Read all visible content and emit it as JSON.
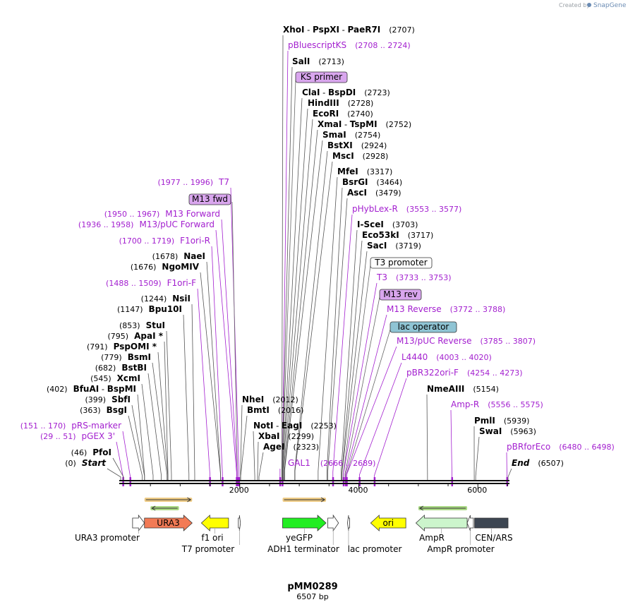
{
  "credit": {
    "prefix": "Created by",
    "brand": "SnapGene"
  },
  "plasmid": {
    "name": "pMM0289",
    "length_label": "6507 bp",
    "length": 6507
  },
  "axis": {
    "ticks": [
      {
        "value": 2000,
        "label": "2000"
      },
      {
        "value": 4000,
        "label": "4000"
      },
      {
        "value": 6000,
        "label": "6000"
      }
    ]
  },
  "sites": [
    {
      "kind": "enzyme",
      "parts": [
        "XhoI",
        "PspXI",
        "PaeR7I"
      ],
      "pos": "(2707)",
      "bp": 2707,
      "color": "#000000"
    },
    {
      "kind": "primer",
      "name": "pBluescriptKS",
      "pos": "(2708 .. 2724)",
      "bp": 2716,
      "color": "#a31fcf"
    },
    {
      "kind": "enzyme",
      "parts": [
        "SalI"
      ],
      "pos": "(2713)",
      "bp": 2713,
      "color": "#000000"
    },
    {
      "kind": "boxed",
      "name": "KS primer",
      "bp": 2716,
      "color": "#d9a6ee"
    },
    {
      "kind": "enzyme",
      "parts": [
        "ClaI",
        "BspDI"
      ],
      "pos": "(2723)",
      "bp": 2723,
      "color": "#000000"
    },
    {
      "kind": "enzyme",
      "parts": [
        "HindIII"
      ],
      "pos": "(2728)",
      "bp": 2728,
      "color": "#000000"
    },
    {
      "kind": "enzyme",
      "parts": [
        "EcoRI"
      ],
      "pos": "(2740)",
      "bp": 2740,
      "color": "#000000"
    },
    {
      "kind": "enzyme",
      "parts": [
        "XmaI",
        "TspMI"
      ],
      "pos": "(2752)",
      "bp": 2752,
      "color": "#000000"
    },
    {
      "kind": "enzyme",
      "parts": [
        "SmaI"
      ],
      "pos": "(2754)",
      "bp": 2754,
      "color": "#000000"
    },
    {
      "kind": "enzyme",
      "parts": [
        "BstXI"
      ],
      "pos": "(2924)",
      "bp": 2924,
      "color": "#000000"
    },
    {
      "kind": "enzyme",
      "parts": [
        "MscI"
      ],
      "pos": "(2928)",
      "bp": 2928,
      "color": "#000000"
    },
    {
      "kind": "enzyme",
      "parts": [
        "MfeI"
      ],
      "pos": "(3317)",
      "bp": 3317,
      "color": "#000000"
    },
    {
      "kind": "enzyme",
      "parts": [
        "BsrGI"
      ],
      "pos": "(3464)",
      "bp": 3464,
      "color": "#000000"
    },
    {
      "kind": "enzyme",
      "parts": [
        "AscI"
      ],
      "pos": "(3479)",
      "bp": 3479,
      "color": "#000000"
    },
    {
      "kind": "primer",
      "name": "pHybLex-R",
      "pos": "(3553 .. 3577)",
      "bp": 3565,
      "color": "#a31fcf"
    },
    {
      "kind": "enzyme",
      "parts": [
        "I-SceI"
      ],
      "pos": "(3703)",
      "bp": 3703,
      "color": "#000000"
    },
    {
      "kind": "enzyme",
      "parts": [
        "Eco53kI"
      ],
      "pos": "(3717)",
      "bp": 3717,
      "color": "#000000"
    },
    {
      "kind": "enzyme",
      "parts": [
        "SacI"
      ],
      "pos": "(3719)",
      "bp": 3719,
      "color": "#000000"
    },
    {
      "kind": "boxed",
      "name": "T3 promoter",
      "bp": 3742,
      "color": "#ffffff"
    },
    {
      "kind": "primer",
      "name": "T3",
      "pos": "(3733 .. 3753)",
      "bp": 3743,
      "color": "#a31fcf"
    },
    {
      "kind": "boxed",
      "name": "M13 rev",
      "bp": 3770,
      "color": "#d9a6ee"
    },
    {
      "kind": "primer",
      "name": "M13 Reverse",
      "pos": "(3772 .. 3788)",
      "bp": 3780,
      "color": "#a31fcf"
    },
    {
      "kind": "boxed",
      "name": "lac operator",
      "bp": 3795,
      "color": "#8fc4d4"
    },
    {
      "kind": "primer",
      "name": "M13/pUC Reverse",
      "pos": "(3785 .. 3807)",
      "bp": 3796,
      "color": "#a31fcf"
    },
    {
      "kind": "primer",
      "name": "L4440",
      "pos": "(4003 .. 4020)",
      "bp": 4011,
      "color": "#a31fcf"
    },
    {
      "kind": "primer",
      "name": "pBR322ori-F",
      "pos": "(4254 .. 4273)",
      "bp": 4263,
      "color": "#a31fcf"
    },
    {
      "kind": "enzyme",
      "parts": [
        "NmeAIII"
      ],
      "pos": "(5154)",
      "bp": 5154,
      "color": "#000000"
    },
    {
      "kind": "primer",
      "name": "Amp-R",
      "pos": "(5556 .. 5575)",
      "bp": 5565,
      "color": "#a31fcf"
    },
    {
      "kind": "enzyme",
      "parts": [
        "PmlI"
      ],
      "pos": "(5939)",
      "bp": 5939,
      "color": "#000000"
    },
    {
      "kind": "enzyme",
      "parts": [
        "SwaI"
      ],
      "pos": "(5963)",
      "bp": 5963,
      "color": "#000000"
    },
    {
      "kind": "primer",
      "name": "pBRforEco",
      "pos": "(6480 .. 6498)",
      "bp": 6489,
      "color": "#a31fcf"
    },
    {
      "kind": "end",
      "name": "End",
      "pos": "(6507)",
      "bp": 6507,
      "color": "#000000"
    },
    {
      "kind": "primer-left",
      "name": "T7",
      "pos": "(1977 .. 1996)",
      "bp": 1986,
      "color": "#a31fcf"
    },
    {
      "kind": "boxed-left",
      "name": "M13 fwd",
      "bp": 1960,
      "color": "#d9a6ee"
    },
    {
      "kind": "primer-left",
      "name": "M13 Forward",
      "pos": "(1950 .. 1967)",
      "bp": 1958,
      "color": "#a31fcf"
    },
    {
      "kind": "primer-left",
      "name": "M13/pUC Forward",
      "pos": "(1936 .. 1958)",
      "bp": 1947,
      "color": "#a31fcf"
    },
    {
      "kind": "primer-left",
      "name": "F1ori-R",
      "pos": "(1700 .. 1719)",
      "bp": 1709,
      "color": "#a31fcf"
    },
    {
      "kind": "enzyme-left",
      "parts": [
        "NaeI"
      ],
      "pos": "(1678)",
      "bp": 1678,
      "color": "#000000"
    },
    {
      "kind": "enzyme-left",
      "parts": [
        "NgoMIV"
      ],
      "pos": "(1676)",
      "bp": 1676,
      "color": "#000000"
    },
    {
      "kind": "primer-left",
      "name": "F1ori-F",
      "pos": "(1488 .. 1509)",
      "bp": 1498,
      "color": "#a31fcf"
    },
    {
      "kind": "enzyme-left",
      "parts": [
        "NsiI"
      ],
      "pos": "(1244)",
      "bp": 1244,
      "color": "#000000"
    },
    {
      "kind": "enzyme-left",
      "parts": [
        "Bpu10I"
      ],
      "pos": "(1147)",
      "bp": 1147,
      "color": "#000000"
    },
    {
      "kind": "enzyme-left",
      "parts": [
        "StuI"
      ],
      "pos": "(853)",
      "bp": 853,
      "color": "#000000"
    },
    {
      "kind": "enzyme-left",
      "parts": [
        "ApaI *"
      ],
      "pos": "(795)",
      "bp": 795,
      "color": "#000000"
    },
    {
      "kind": "enzyme-left",
      "parts": [
        "PspOMI *"
      ],
      "pos": "(791)",
      "bp": 791,
      "color": "#000000"
    },
    {
      "kind": "enzyme-left",
      "parts": [
        "BsmI"
      ],
      "pos": "(779)",
      "bp": 779,
      "color": "#000000"
    },
    {
      "kind": "enzyme-left",
      "parts": [
        "BstBI"
      ],
      "pos": "(682)",
      "bp": 682,
      "color": "#000000"
    },
    {
      "kind": "enzyme-left",
      "parts": [
        "XcmI"
      ],
      "pos": "(545)",
      "bp": 545,
      "color": "#000000"
    },
    {
      "kind": "enzyme-left",
      "parts": [
        "BfuAI",
        "BspMI"
      ],
      "pos": "(402)",
      "bp": 402,
      "color": "#000000"
    },
    {
      "kind": "enzyme-left",
      "parts": [
        "SbfI"
      ],
      "pos": "(399)",
      "bp": 399,
      "color": "#000000"
    },
    {
      "kind": "enzyme-left",
      "parts": [
        "BsgI"
      ],
      "pos": "(363)",
      "bp": 363,
      "color": "#000000"
    },
    {
      "kind": "primer-left",
      "name": "pRS-marker",
      "pos": "(151 .. 170)",
      "bp": 160,
      "color": "#a31fcf"
    },
    {
      "kind": "primer-left",
      "name": "pGEX 3'",
      "pos": "(29 .. 51)",
      "bp": 40,
      "color": "#a31fcf"
    },
    {
      "kind": "enzyme-left",
      "parts": [
        "PfoI"
      ],
      "pos": "(46)",
      "bp": 46,
      "color": "#000000"
    },
    {
      "kind": "start",
      "name": "Start",
      "pos": "(0)",
      "bp": 0,
      "color": "#000000"
    },
    {
      "kind": "enzyme",
      "parts": [
        "NheI"
      ],
      "pos": "(2012)",
      "bp": 2012,
      "color": "#000000"
    },
    {
      "kind": "enzyme",
      "parts": [
        "BmtI"
      ],
      "pos": "(2016)",
      "bp": 2016,
      "color": "#000000"
    },
    {
      "kind": "enzyme",
      "parts": [
        "NotI",
        "EagI"
      ],
      "pos": "(2253)",
      "bp": 2253,
      "color": "#000000"
    },
    {
      "kind": "enzyme",
      "parts": [
        "XbaI"
      ],
      "pos": "(2299)",
      "bp": 2299,
      "color": "#000000"
    },
    {
      "kind": "enzyme",
      "parts": [
        "AgeI"
      ],
      "pos": "(2323)",
      "bp": 2323,
      "color": "#000000"
    },
    {
      "kind": "primer-range",
      "name": "GAL1",
      "pos": "(2666 .. 2689)",
      "bp": 2677,
      "color": "#a31fcf"
    }
  ],
  "features": [
    {
      "name": "URA3 promoter",
      "label": "URA3 promoter",
      "color": "#ffffff",
      "start": 200,
      "end": 400,
      "dir": "fwd"
    },
    {
      "name": "URA3",
      "label": "URA3",
      "color": "#f27a55",
      "start": 400,
      "end": 1201,
      "dir": "fwd"
    },
    {
      "name": "f1 ori",
      "label": "f1 ori",
      "color": "#ffff00",
      "start": 1356,
      "end": 1812,
      "dir": "rev"
    },
    {
      "name": "T7 promoter",
      "label": "T7 promoter",
      "color": "#ffffff",
      "start": 1977,
      "end": 1996,
      "dir": "fwd"
    },
    {
      "name": "yeGFP",
      "label": "yeGFP",
      "color": "#22ee22",
      "start": 2720,
      "end": 3450,
      "dir": "fwd"
    },
    {
      "name": "ADH1 terminator",
      "label": "ADH1 terminator",
      "color": "#ffffff",
      "start": 3480,
      "end": 3660,
      "dir": "fwd"
    },
    {
      "name": "lac promoter",
      "label": "lac promoter",
      "color": "#ffffff",
      "start": 3810,
      "end": 3840,
      "dir": "rev"
    },
    {
      "name": "ori",
      "label": "ori",
      "color": "#ffff00",
      "start": 4200,
      "end": 4790,
      "dir": "rev"
    },
    {
      "name": "AmpR",
      "label": "AmpR",
      "color": "#ccf5cc",
      "start": 4960,
      "end": 5820,
      "dir": "rev"
    },
    {
      "name": "AmpR promoter",
      "label": "AmpR promoter",
      "color": "#ffffff",
      "start": 5820,
      "end": 5925,
      "dir": "rev"
    },
    {
      "name": "CEN/ARS",
      "label": "CEN/ARS",
      "color": "#3d4652",
      "start": 5945,
      "end": 6507,
      "dir": "none"
    }
  ],
  "orfs": [
    {
      "start": 400,
      "end": 1201,
      "dir": "fwd",
      "color": "#e0a020"
    },
    {
      "start": 500,
      "end": 980,
      "dir": "rev",
      "color": "#66bb22"
    },
    {
      "start": 2720,
      "end": 3450,
      "dir": "fwd",
      "color": "#e0a020"
    },
    {
      "start": 5000,
      "end": 5820,
      "dir": "rev",
      "color": "#66bb22"
    }
  ]
}
